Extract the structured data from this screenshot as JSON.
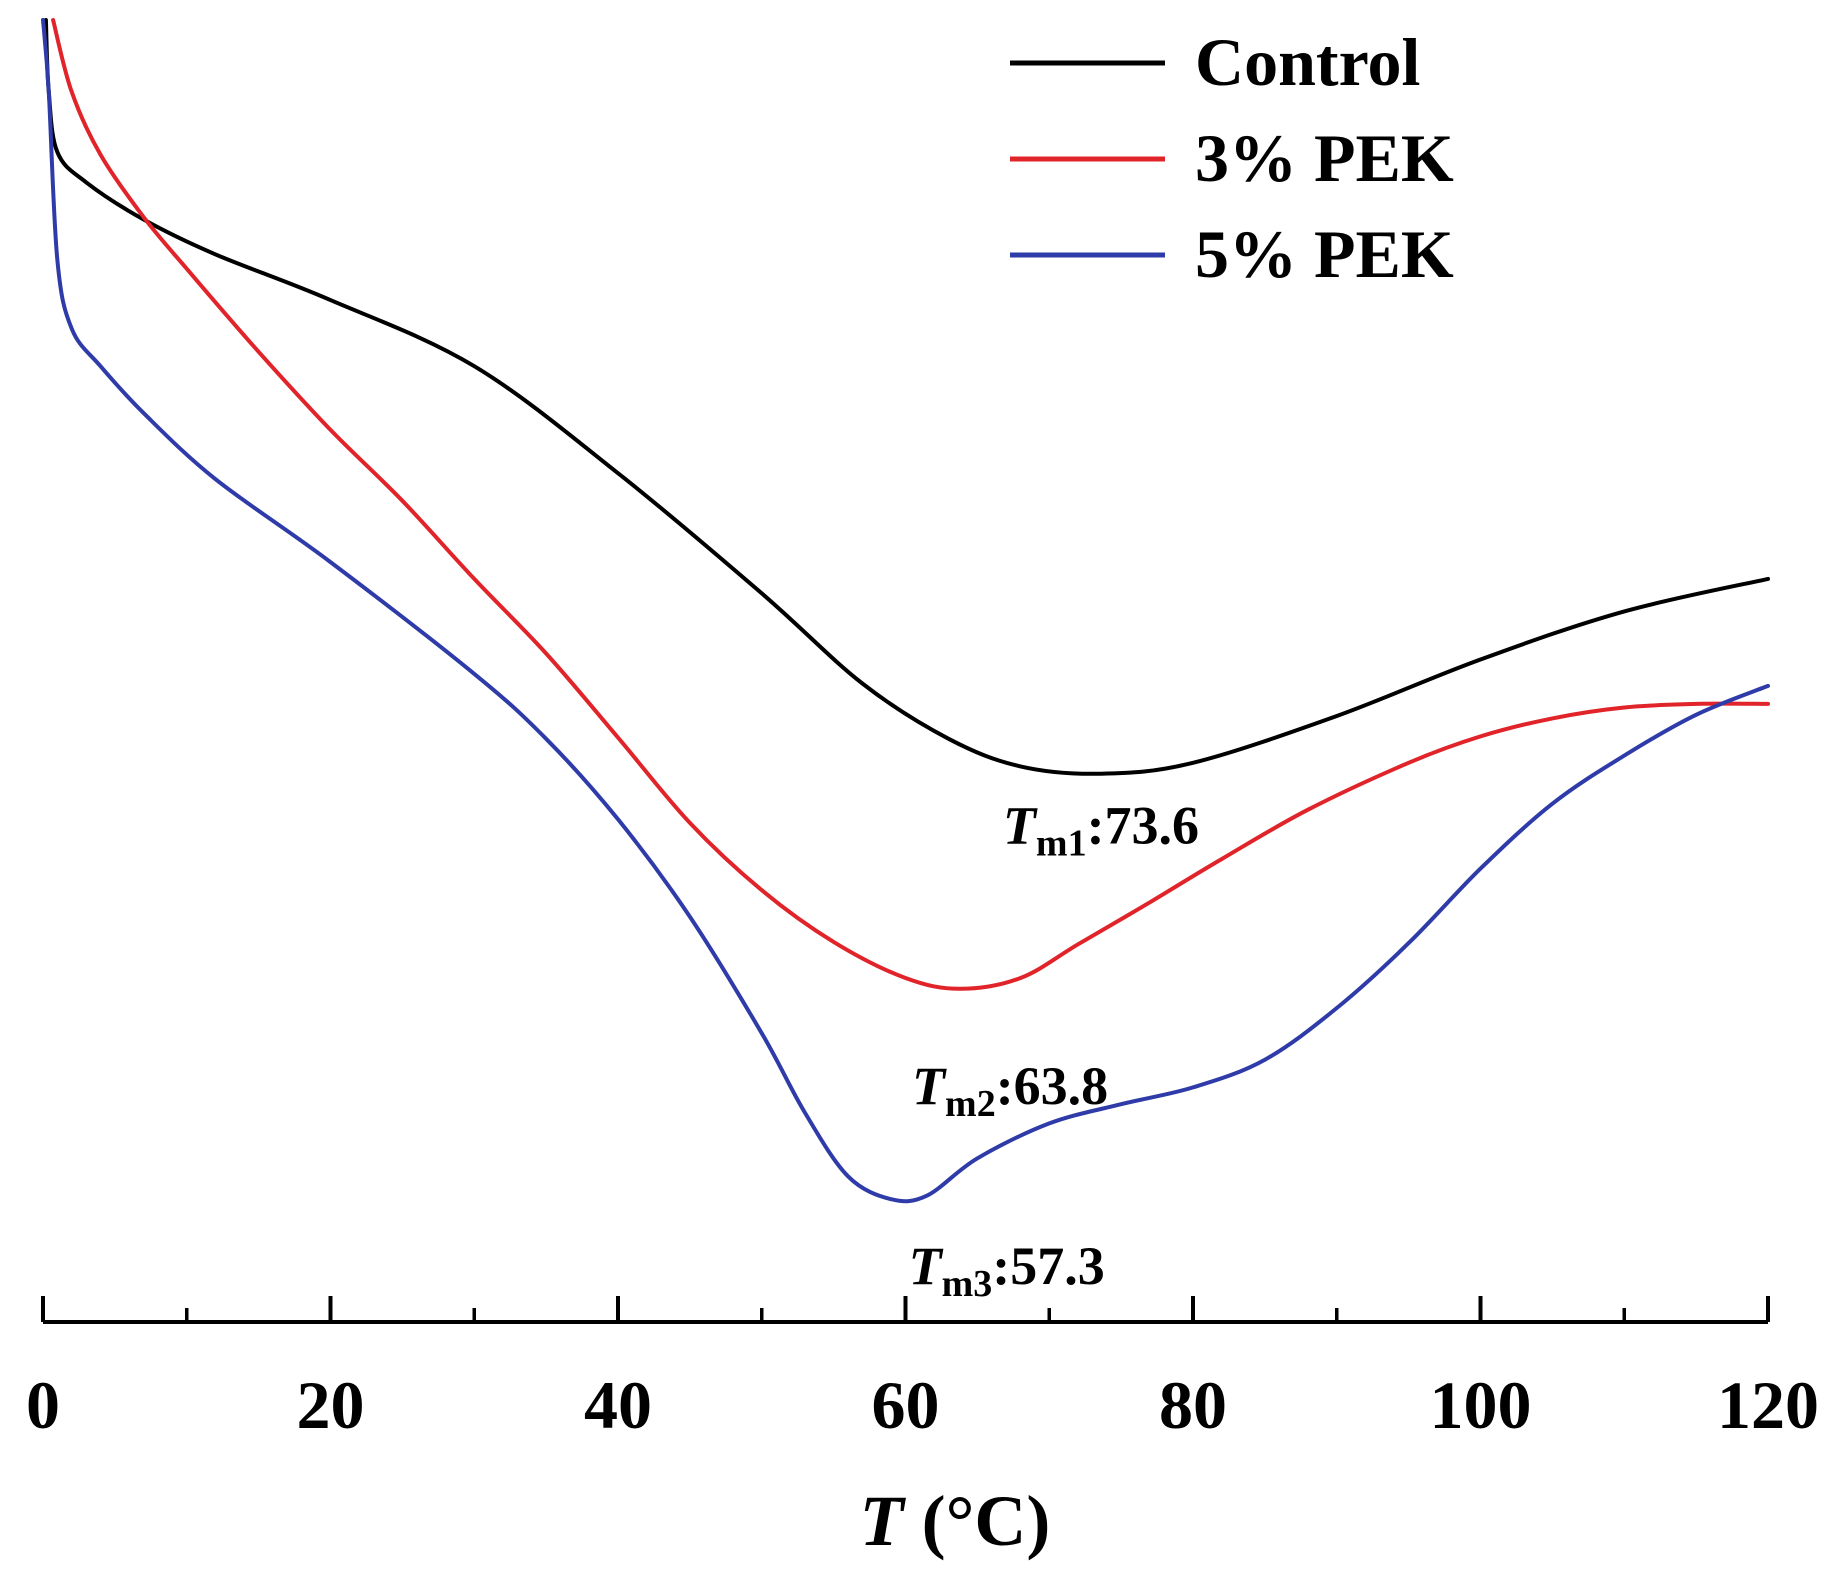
{
  "chart_data": {
    "type": "line",
    "title": "",
    "xlabel_var": "T",
    "xlabel_unit": " (°C)",
    "ylabel": "",
    "xlim": [
      0,
      120
    ],
    "x_ticks": [
      "0",
      "20",
      "40",
      "60",
      "80",
      "100",
      "120"
    ],
    "x_minor_step": 10,
    "y_ticks_shown": false,
    "ylim": [
      0,
      100
    ],
    "grid": false,
    "legend_position": "top-right",
    "series": [
      {
        "name": "Control",
        "color": "#000000",
        "points": [
          [
            0.2,
            100
          ],
          [
            0.4,
            94
          ],
          [
            1,
            89
          ],
          [
            3,
            86.5
          ],
          [
            7,
            83.4
          ],
          [
            12,
            80.5
          ],
          [
            20,
            76.7
          ],
          [
            30,
            71.2
          ],
          [
            40,
            62.3
          ],
          [
            50,
            52.3
          ],
          [
            57,
            44.8
          ],
          [
            63,
            40.2
          ],
          [
            68,
            37.9
          ],
          [
            73.6,
            37.3
          ],
          [
            80,
            38.2
          ],
          [
            90,
            42.1
          ],
          [
            100,
            46.8
          ],
          [
            110,
            50.8
          ],
          [
            120,
            53.5
          ]
        ]
      },
      {
        "name": "3% PEK",
        "color": "#e0242a",
        "points": [
          [
            0.7,
            100
          ],
          [
            2,
            94
          ],
          [
            4,
            88.8
          ],
          [
            7,
            83.6
          ],
          [
            10,
            79.3
          ],
          [
            15,
            72.4
          ],
          [
            20,
            65.9
          ],
          [
            25,
            60
          ],
          [
            30,
            53.5
          ],
          [
            35,
            47.3
          ],
          [
            40,
            40.3
          ],
          [
            45,
            33.2
          ],
          [
            50,
            27.6
          ],
          [
            55,
            23.3
          ],
          [
            60,
            20.3
          ],
          [
            63.8,
            19.4
          ],
          [
            68,
            20.3
          ],
          [
            72,
            23.1
          ],
          [
            77,
            26.6
          ],
          [
            82,
            30.2
          ],
          [
            88,
            34.3
          ],
          [
            95,
            38.2
          ],
          [
            100,
            40.4
          ],
          [
            105,
            41.9
          ],
          [
            110,
            42.8
          ],
          [
            115,
            43.1
          ],
          [
            120,
            43.1
          ]
        ]
      },
      {
        "name": "5% PEK",
        "color": "#2e3ba8",
        "points": [
          [
            0,
            100
          ],
          [
            0.4,
            94
          ],
          [
            1,
            80
          ],
          [
            2,
            74.3
          ],
          [
            4,
            71.2
          ],
          [
            7,
            67.3
          ],
          [
            12,
            61.8
          ],
          [
            20,
            54.9
          ],
          [
            30,
            45.6
          ],
          [
            35,
            40.2
          ],
          [
            40,
            33.5
          ],
          [
            45,
            25.4
          ],
          [
            50,
            15.7
          ],
          [
            53,
            9.1
          ],
          [
            56,
            3.8
          ],
          [
            59,
            1.9
          ],
          [
            61.5,
            2.2
          ],
          [
            65,
            5.3
          ],
          [
            70,
            8.2
          ],
          [
            75,
            9.8
          ],
          [
            80,
            11.2
          ],
          [
            85,
            13.5
          ],
          [
            90,
            17.8
          ],
          [
            95,
            23.2
          ],
          [
            100,
            29.4
          ],
          [
            105,
            34.8
          ],
          [
            110,
            38.8
          ],
          [
            115,
            42.2
          ],
          [
            120,
            44.6
          ]
        ]
      }
    ],
    "annotations": [
      {
        "var": "T",
        "sub": "m1",
        "text": ":73.6",
        "x": 73.6,
        "y": 37.3
      },
      {
        "var": "T",
        "sub": "m2",
        "text": ":63.8",
        "x": 63.8,
        "y": 19.4
      },
      {
        "var": "T",
        "sub": "m3",
        "text": ":57.3",
        "x": 57.3,
        "y": 1.9
      }
    ]
  }
}
